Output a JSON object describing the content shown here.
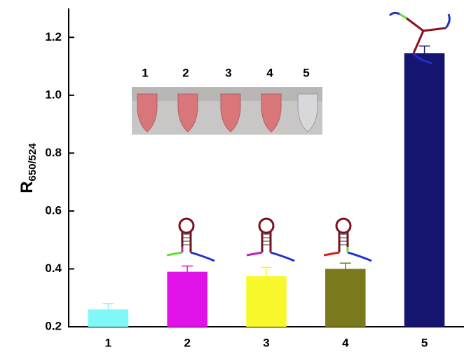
{
  "chart_data": {
    "type": "bar",
    "ylabel": {
      "main": "R",
      "sub": "650/524"
    },
    "categories": [
      "1",
      "2",
      "3",
      "4",
      "5"
    ],
    "values": [
      0.26,
      0.39,
      0.375,
      0.4,
      1.145
    ],
    "errors": [
      0.02,
      0.02,
      0.03,
      0.02,
      0.025
    ],
    "colors": [
      "#80f8f8",
      "#e012e8",
      "#f8f82c",
      "#7a7a1c",
      "#15156f"
    ],
    "ylim": [
      0.2,
      1.3
    ],
    "yticks": [
      0.2,
      0.4,
      0.6,
      0.8,
      {
        "value": 1,
        "label": "1.0"
      },
      1.2
    ],
    "grid": false
  }
}
